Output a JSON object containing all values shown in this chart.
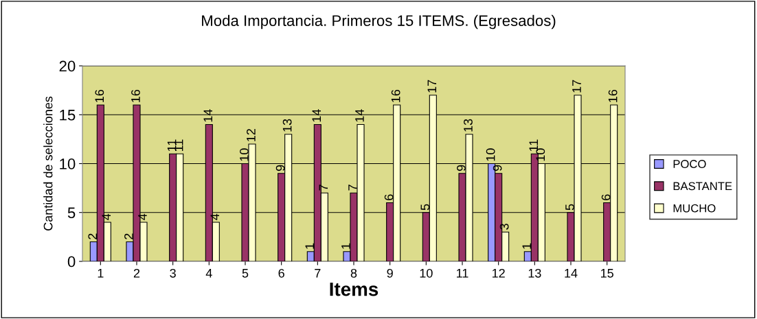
{
  "chart_data": {
    "type": "bar",
    "title": "Moda Importancia. Primeros 15 ITEMS. (Egresados)",
    "xlabel": "Items",
    "ylabel": "Cantidad de selecciones",
    "categories": [
      "1",
      "2",
      "3",
      "4",
      "5",
      "6",
      "7",
      "8",
      "9",
      "10",
      "11",
      "12",
      "13",
      "14",
      "15"
    ],
    "series": [
      {
        "name": "POCO",
        "color": "#9999ff",
        "values": [
          2,
          2,
          null,
          null,
          null,
          null,
          1,
          1,
          null,
          null,
          null,
          10,
          1,
          null,
          null
        ]
      },
      {
        "name": "BASTANTE",
        "color": "#993366",
        "values": [
          16,
          16,
          11,
          14,
          10,
          9,
          14,
          7,
          6,
          5,
          9,
          9,
          11,
          5,
          6
        ]
      },
      {
        "name": "MUCHO",
        "color": "#ffffcc",
        "values": [
          4,
          4,
          11,
          4,
          12,
          13,
          7,
          14,
          16,
          17,
          13,
          3,
          10,
          17,
          16
        ]
      }
    ],
    "ylim": [
      0,
      20
    ],
    "yticks": [
      0,
      5,
      10,
      15,
      20
    ],
    "grid": "y",
    "legend": "right",
    "data_labels": true
  }
}
